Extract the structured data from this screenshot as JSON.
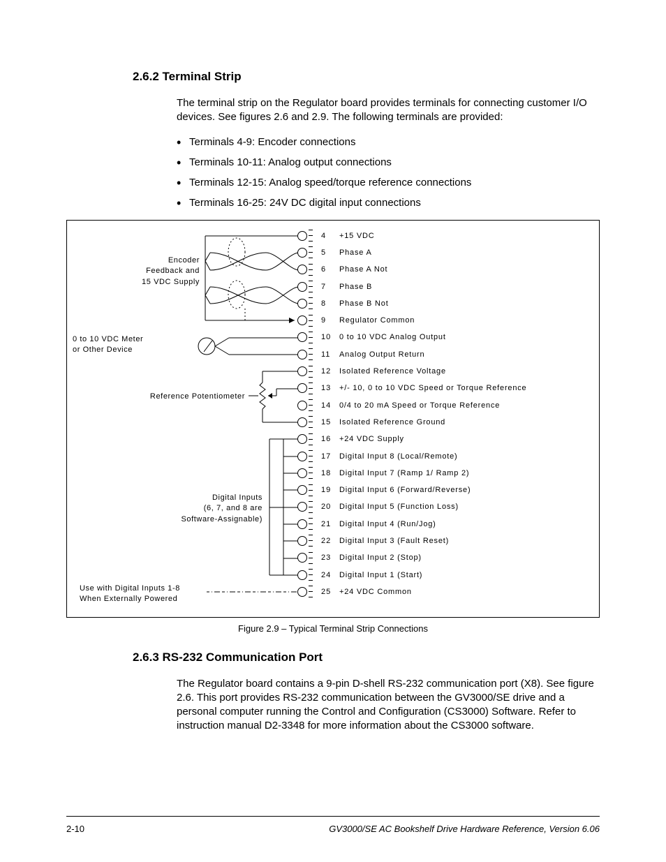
{
  "heading1": "2.6.2  Terminal Strip",
  "intro": "The terminal strip on the Regulator board provides terminals for connecting customer I/O devices. See figures 2.6 and 2.9. The following terminals are provided:",
  "bullets": [
    "Terminals 4-9: Encoder connections",
    "Terminals 10-11: Analog output connections",
    "Terminals 12-15: Analog speed/torque reference connections",
    "Terminals 16-25: 24V DC digital input connections"
  ],
  "terminals": [
    {
      "n": "4",
      "label": "+15 VDC"
    },
    {
      "n": "5",
      "label": "Phase A"
    },
    {
      "n": "6",
      "label": "Phase A Not"
    },
    {
      "n": "7",
      "label": "Phase B"
    },
    {
      "n": "8",
      "label": "Phase B Not"
    },
    {
      "n": "9",
      "label": "Regulator Common"
    },
    {
      "n": "10",
      "label": "0 to 10 VDC Analog Output"
    },
    {
      "n": "11",
      "label": "Analog Output Return"
    },
    {
      "n": "12",
      "label": "Isolated Reference Voltage"
    },
    {
      "n": "13",
      "label": "+/- 10, 0 to 10 VDC Speed or Torque Reference"
    },
    {
      "n": "14",
      "label": "0/4 to 20 mA Speed or Torque Reference"
    },
    {
      "n": "15",
      "label": "Isolated Reference Ground"
    },
    {
      "n": "16",
      "label": "+24 VDC Supply"
    },
    {
      "n": "17",
      "label": "Digital Input 8 (Local/Remote)"
    },
    {
      "n": "18",
      "label": "Digital Input 7 (Ramp 1/ Ramp 2)"
    },
    {
      "n": "19",
      "label": "Digital Input 6 (Forward/Reverse)"
    },
    {
      "n": "20",
      "label": "Digital Input 5 (Function Loss)"
    },
    {
      "n": "21",
      "label": "Digital Input 4 (Run/Jog)"
    },
    {
      "n": "22",
      "label": "Digital Input 3 (Fault Reset)"
    },
    {
      "n": "23",
      "label": "Digital Input 2 (Stop)"
    },
    {
      "n": "24",
      "label": "Digital Input 1 (Start)"
    },
    {
      "n": "25",
      "label": "+24 VDC Common"
    }
  ],
  "leftLabels": {
    "encoder": "Encoder\nFeedback and\n15 VDC Supply",
    "meter": "0 to 10 VDC Meter\nor Other Device",
    "refpot": "Reference Potentiometer",
    "digital": "Digital Inputs\n(6, 7, and 8 are\nSoftware-Assignable)",
    "ext": "Use with Digital Inputs 1-8\nWhen Externally Powered"
  },
  "figureCaption": "Figure 2.9 – Typical Terminal Strip Connections",
  "heading2": "2.6.3  RS-232 Communication Port",
  "body2": "The Regulator board contains a 9-pin D-shell RS-232 communication port (X8). See figure 2.6. This port provides RS-232 communication between the GV3000/SE drive and a personal computer running the Control and Configuration (CS3000) Software. Refer to instruction manual D2-3348 for more information about the CS3000 software.",
  "footer": {
    "left": "2-10",
    "right": "GV3000/SE AC Bookshelf Drive Hardware Reference, Version 6.06"
  },
  "colors": {
    "line": "#000000"
  }
}
